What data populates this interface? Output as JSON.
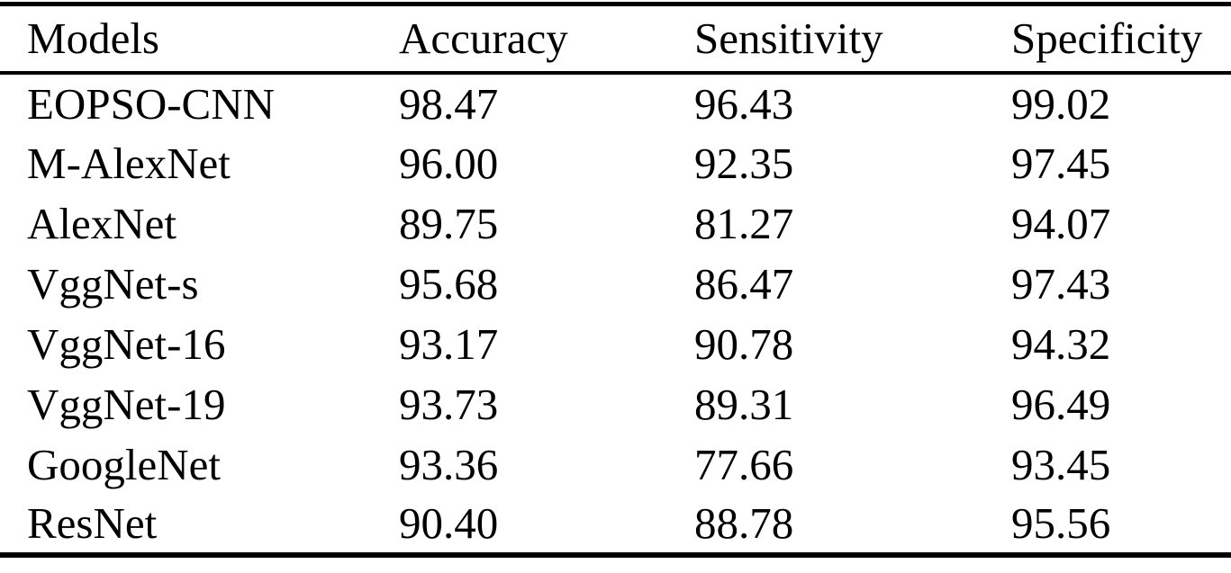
{
  "page": {
    "background_color": "#ffffff",
    "text_color": "#000000",
    "rule_color": "#000000"
  },
  "table": {
    "columns": [
      {
        "key": "model",
        "label": "Models"
      },
      {
        "key": "accuracy",
        "label": "Accuracy"
      },
      {
        "key": "sensitivity",
        "label": "Sensitivity"
      },
      {
        "key": "specificity",
        "label": "Specificity"
      }
    ],
    "rows": [
      {
        "model": "EOPSO-CNN",
        "accuracy": "98.47",
        "sensitivity": "96.43",
        "specificity": "99.02"
      },
      {
        "model": "M-AlexNet",
        "accuracy": "96.00",
        "sensitivity": "92.35",
        "specificity": "97.45"
      },
      {
        "model": "AlexNet",
        "accuracy": "89.75",
        "sensitivity": "81.27",
        "specificity": "94.07"
      },
      {
        "model": "VggNet-s",
        "accuracy": "95.68",
        "sensitivity": "86.47",
        "specificity": "97.43"
      },
      {
        "model": "VggNet-16",
        "accuracy": "93.17",
        "sensitivity": "90.78",
        "specificity": "94.32"
      },
      {
        "model": "VggNet-19",
        "accuracy": "93.73",
        "sensitivity": "89.31",
        "specificity": "96.49"
      },
      {
        "model": "GoogleNet",
        "accuracy": "93.36",
        "sensitivity": "77.66",
        "specificity": "93.45"
      },
      {
        "model": "ResNet",
        "accuracy": "90.40",
        "sensitivity": "88.78",
        "specificity": "95.56"
      }
    ]
  },
  "chart_data": {
    "type": "table",
    "title": "",
    "columns": [
      "Models",
      "Accuracy",
      "Sensitivity",
      "Specificity"
    ],
    "rows": [
      [
        "EOPSO-CNN",
        98.47,
        96.43,
        99.02
      ],
      [
        "M-AlexNet",
        96.0,
        92.35,
        97.45
      ],
      [
        "AlexNet",
        89.75,
        81.27,
        94.07
      ],
      [
        "VggNet-s",
        95.68,
        86.47,
        97.43
      ],
      [
        "VggNet-16",
        93.17,
        90.78,
        94.32
      ],
      [
        "VggNet-19",
        93.73,
        89.31,
        96.49
      ],
      [
        "GoogleNet",
        93.36,
        77.66,
        93.45
      ],
      [
        "ResNet",
        90.4,
        88.78,
        95.56
      ]
    ]
  }
}
